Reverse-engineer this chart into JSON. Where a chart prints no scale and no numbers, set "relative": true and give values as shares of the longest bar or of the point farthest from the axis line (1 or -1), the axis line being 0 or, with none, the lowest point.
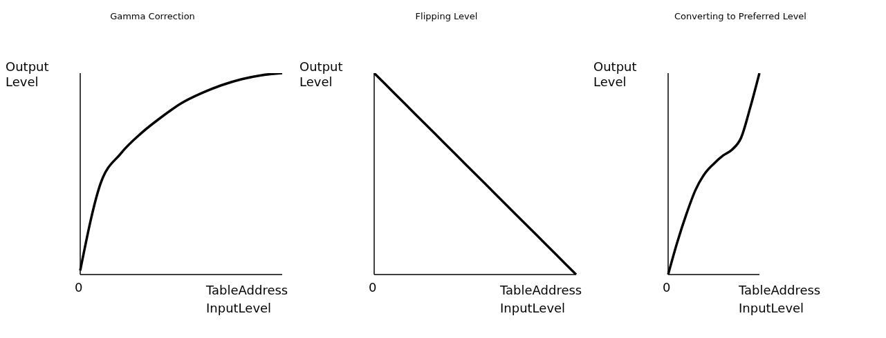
{
  "chart_data": [
    {
      "type": "line",
      "title": "Gamma Correction",
      "xlabel": "TableAddress InputLevel",
      "ylabel": "Output Level",
      "annotations": [
        "0"
      ],
      "relative": true,
      "grid": false,
      "legend": false,
      "marker": "none",
      "line_style": "solid",
      "categories": [
        null,
        null,
        null,
        null,
        null,
        null,
        null,
        null,
        null,
        null,
        null
      ],
      "series": [
        {
          "color": "#000000",
          "values": [
            0.02,
            0.45,
            0.6,
            0.7,
            0.78,
            0.85,
            0.9,
            0.94,
            0.97,
            0.99,
            1
          ]
        }
      ]
    },
    {
      "type": "line",
      "title": "Flipping  Level",
      "xlabel": "TableAddress InputLevel",
      "ylabel": "Output Level",
      "annotations": [
        "0"
      ],
      "relative": true,
      "grid": false,
      "legend": false,
      "marker": "none",
      "line_style": "solid",
      "categories": [
        null,
        null,
        null,
        null,
        null,
        null,
        null,
        null,
        null,
        null,
        null
      ],
      "series": [
        {
          "color": "#000000",
          "values": [
            1,
            0.9,
            0.8,
            0.7,
            0.6,
            0.5,
            0.4,
            0.3,
            0.2,
            0.1,
            0
          ]
        }
      ]
    },
    {
      "type": "line",
      "title": "Converting to Preferred Level",
      "xlabel": "TableAddress InputLevel",
      "ylabel": "Output Level",
      "annotations": [
        "0"
      ],
      "relative": true,
      "grid": false,
      "legend": false,
      "marker": "none",
      "line_style": "solid",
      "categories": [
        null,
        null,
        null,
        null,
        null,
        null,
        null,
        null,
        null,
        null,
        null
      ],
      "series": [
        {
          "color": "#000000",
          "values": [
            0,
            0.16,
            0.3,
            0.42,
            0.5,
            0.55,
            0.59,
            0.62,
            0.68,
            0.83,
            1
          ]
        }
      ]
    }
  ]
}
